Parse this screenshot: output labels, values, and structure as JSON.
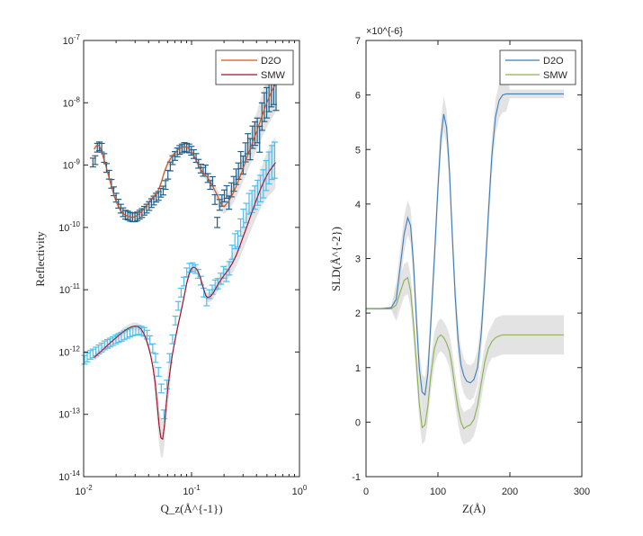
{
  "chart_data": [
    {
      "type": "line",
      "panel": "left",
      "xlabel": "Q_z(Å^{-1})",
      "ylabel": "Reflectivity",
      "xscale": "log",
      "yscale": "log",
      "xlim": [
        0.01,
        1
      ],
      "ylim": [
        1e-14,
        1e-07
      ],
      "xticks": [
        0.01,
        0.1,
        1
      ],
      "xtick_labels": [
        "10^-2",
        "10^-1",
        "10^0"
      ],
      "yticks": [
        1e-14,
        1e-13,
        1e-12,
        1e-11,
        1e-10,
        1e-09,
        1e-08,
        1e-07
      ],
      "ytick_labels": [
        "10^-14",
        "10^-13",
        "10^-12",
        "10^-11",
        "10^-10",
        "10^-9",
        "10^-8",
        "10^-7"
      ],
      "legend_position": "top-right",
      "legend": [
        {
          "label": "D2O",
          "color": "#D95319"
        },
        {
          "label": "SMW",
          "color": "#A2142F"
        }
      ],
      "series": [
        {
          "name": "D2O",
          "kind": "fit",
          "color": "#D95319",
          "x": [
            0.0125,
            0.013,
            0.0135,
            0.014,
            0.0145,
            0.015,
            0.016,
            0.017,
            0.018,
            0.019,
            0.02,
            0.022,
            0.024,
            0.026,
            0.028,
            0.03,
            0.032,
            0.034,
            0.036,
            0.038,
            0.04,
            0.042,
            0.045,
            0.048,
            0.05,
            0.053,
            0.056,
            0.06,
            0.064,
            0.068,
            0.072,
            0.076,
            0.08,
            0.085,
            0.09,
            0.095,
            0.1,
            0.105,
            0.11,
            0.115,
            0.12,
            0.13,
            0.14,
            0.15,
            0.16,
            0.17,
            0.18,
            0.19,
            0.2,
            0.22,
            0.24,
            0.26,
            0.28,
            0.3,
            0.33,
            0.36,
            0.4,
            0.44,
            0.48,
            0.52,
            0.56,
            0.6
          ],
          "y": [
            1.8e-09,
            2e-09,
            2.1e-09,
            2e-09,
            1.75e-09,
            1.45e-09,
            1e-09,
            6.8e-10,
            4.7e-10,
            3.4e-10,
            2.6e-10,
            1.85e-10,
            1.6e-10,
            1.5e-10,
            1.45e-10,
            1.48e-10,
            1.6e-10,
            1.75e-10,
            1.95e-10,
            2.2e-10,
            2.5e-10,
            2.8e-10,
            3.2e-10,
            3.6e-10,
            4.2e-10,
            5.6e-10,
            7.8e-10,
            1.05e-09,
            1.28e-09,
            1.48e-09,
            1.65e-09,
            1.8e-09,
            1.9e-09,
            1.97e-09,
            1.95e-09,
            1.85e-09,
            1.65e-09,
            1.42e-09,
            1.2e-09,
            1.02e-09,
            8.8e-10,
            7.3e-10,
            6.4e-10,
            5.3e-10,
            4.3e-10,
            3.5e-10,
            2.8e-10,
            2.3e-10,
            2.15e-10,
            2.6e-10,
            3.4e-10,
            4.6e-10,
            6.4e-10,
            8.8e-10,
            1.4e-09,
            2.1e-09,
            3.4e-09,
            5.5e-09,
            8.5e-09,
            1.2e-08,
            1.6e-08,
            2e-08
          ]
        },
        {
          "name": "SMW",
          "kind": "fit",
          "color": "#A2142F",
          "x": [
            0.0125,
            0.014,
            0.016,
            0.018,
            0.02,
            0.022,
            0.024,
            0.026,
            0.028,
            0.03,
            0.032,
            0.034,
            0.036,
            0.038,
            0.04,
            0.042,
            0.044,
            0.046,
            0.048,
            0.05,
            0.052,
            0.054,
            0.056,
            0.058,
            0.06,
            0.063,
            0.066,
            0.07,
            0.075,
            0.08,
            0.085,
            0.09,
            0.095,
            0.1,
            0.105,
            0.11,
            0.115,
            0.12,
            0.125,
            0.13,
            0.135,
            0.14,
            0.15,
            0.16,
            0.17,
            0.18,
            0.19,
            0.2,
            0.22,
            0.24,
            0.26,
            0.28,
            0.3,
            0.33,
            0.36,
            0.4,
            0.44,
            0.48,
            0.52,
            0.56,
            0.6
          ],
          "y": [
            8.2e-13,
            9.7e-13,
            1.2e-12,
            1.45e-12,
            1.7e-12,
            1.95e-12,
            2.2e-12,
            2.4e-12,
            2.55e-12,
            2.6e-12,
            2.55e-12,
            2.35e-12,
            2e-12,
            1.6e-12,
            1.2e-12,
            8.5e-13,
            5.5e-13,
            3.2e-13,
            1.5e-13,
            6.8e-14,
            4.2e-14,
            4e-14,
            6.5e-14,
            1.3e-13,
            2.4e-13,
            4.8e-13,
            8.5e-13,
            1.5e-12,
            2.7e-12,
            4.5e-12,
            7.5e-12,
            1.25e-11,
            1.8e-11,
            2.2e-11,
            2.3e-11,
            2.2e-11,
            1.95e-11,
            1.6e-11,
            1.25e-11,
            1e-11,
            8.2e-12,
            7.5e-12,
            7.8e-12,
            9e-12,
            1.1e-11,
            1.3e-11,
            1.5e-11,
            1.7e-11,
            2.1e-11,
            2.7e-11,
            3.6e-11,
            5e-11,
            7e-11,
            1.1e-10,
            1.7e-10,
            2.8e-10,
            4.3e-10,
            6e-10,
            7.8e-10,
            9.3e-10,
            1.1e-09
          ]
        },
        {
          "name": "D2O",
          "kind": "data",
          "color": "#1F5F8B",
          "x": [
            0.0122,
            0.0128,
            0.0134,
            0.014,
            0.0147,
            0.0155,
            0.0163,
            0.0172,
            0.0181,
            0.019,
            0.02,
            0.021,
            0.0221,
            0.0232,
            0.0244,
            0.0257,
            0.027,
            0.0284,
            0.0299,
            0.0314,
            0.033,
            0.0347,
            0.0365,
            0.0384,
            0.0404,
            0.0425,
            0.0447,
            0.047,
            0.0494,
            0.0519,
            0.0546,
            0.0574,
            0.0604,
            0.0635,
            0.0668,
            0.0702,
            0.0738,
            0.0776,
            0.0816,
            0.0858,
            0.0902,
            0.0948,
            0.0997,
            0.1048,
            0.1102,
            0.1159,
            0.1219,
            0.1282,
            0.1348,
            0.1417,
            0.149,
            0.1567,
            0.1647,
            0.1732,
            0.1821,
            0.1915,
            0.2013,
            0.2117,
            0.2226,
            0.2341,
            0.2461,
            0.2588,
            0.2721,
            0.2861,
            0.3008,
            0.3163,
            0.3326,
            0.3497,
            0.3677,
            0.3866,
            0.4065,
            0.4274,
            0.4494,
            0.4725,
            0.4968,
            0.5224,
            0.5493,
            0.5775,
            0.6072
          ],
          "y": [
            1.1e-09,
            1.2e-09,
            1.9e-09,
            2e-09,
            1.9e-09,
            1.3e-09,
            9e-10,
            7e-10,
            5e-10,
            3.8e-10,
            3e-10,
            2.4e-10,
            2e-10,
            1.75e-10,
            1.6e-10,
            1.55e-10,
            1.48e-10,
            1.45e-10,
            1.45e-10,
            1.5e-10,
            1.6e-10,
            1.7e-10,
            1.85e-10,
            2e-10,
            2.2e-10,
            2.45e-10,
            2.7e-10,
            3e-10,
            3.2e-10,
            3.6e-10,
            3.9e-10,
            4.8e-10,
            7e-10,
            9.5e-10,
            1.2e-09,
            1.4e-09,
            1.6e-09,
            1.75e-09,
            1.85e-09,
            1.95e-09,
            1.9e-09,
            1.85e-09,
            1.7e-09,
            1.5e-09,
            1.3e-09,
            1.05e-09,
            8.8e-10,
            7.8e-10,
            8.5e-10,
            6.2e-10,
            4.8e-10,
            5.5e-10,
            2.8e-10,
            1.2e-10,
            2.3e-10,
            2.7e-10,
            3.2e-10,
            3.7e-10,
            2.5e-10,
            4e-10,
            5e-10,
            6.5e-10,
            8e-10,
            1.2e-09,
            1e-09,
            1.6e-09,
            2.2e-09,
            1.8e-09,
            2.8e-09,
            3.2e-09,
            3.6e-09,
            2.6e-09,
            6e-09,
            8.5e-09,
            1e-08,
            1.3e-08,
            1.6e-08,
            1.8e-08,
            1.5e-08
          ]
        },
        {
          "name": "SMW",
          "kind": "data",
          "color": "#4DBEEE",
          "x": [
            0.0102,
            0.0108,
            0.0115,
            0.0122,
            0.013,
            0.0138,
            0.0147,
            0.0156,
            0.0166,
            0.0176,
            0.0187,
            0.0199,
            0.0211,
            0.0224,
            0.0238,
            0.0253,
            0.0269,
            0.0286,
            0.0304,
            0.0323,
            0.0343,
            0.0364,
            0.0387,
            0.0411,
            0.0437,
            0.0464,
            0.0493,
            0.0524,
            0.0556,
            0.0591,
            0.0628,
            0.0667,
            0.0709,
            0.0753,
            0.08,
            0.085,
            0.0903,
            0.0959,
            0.1019,
            0.1083,
            0.115,
            0.1222,
            0.1298,
            0.1379,
            0.1465,
            0.1556,
            0.1653,
            0.1756,
            0.1866,
            0.1982,
            0.2106,
            0.2237,
            0.2376,
            0.2524,
            0.2682,
            0.2849,
            0.3027,
            0.3215,
            0.3416,
            0.3629,
            0.3855,
            0.4095,
            0.435,
            0.4622,
            0.491,
            0.5216,
            0.5541,
            0.5886
          ],
          "y": [
            7.5e-13,
            8.2e-13,
            9e-13,
            9.5e-13,
            1.02e-12,
            1.1e-12,
            1.18e-12,
            1.28e-12,
            1.35e-12,
            1.42e-12,
            1.5e-12,
            1.6e-12,
            1.68e-12,
            1.75e-12,
            1.85e-12,
            1.95e-12,
            2.05e-12,
            2.15e-12,
            2.2e-12,
            2.25e-12,
            2.2e-12,
            2.1e-12,
            1.9e-12,
            1.55e-12,
            1.15e-12,
            8e-13,
            4.8e-13,
            2.6e-13,
            1e-13,
            3e-13,
            8e-13,
            1.6e-12,
            3.2e-12,
            5.5e-12,
            9e-12,
            1.35e-11,
            1.9e-11,
            2.25e-11,
            2.3e-11,
            2.15e-11,
            1.8e-11,
            1.4e-11,
            9e-12,
            6.5e-12,
            8.5e-12,
            1e-11,
            1.2e-11,
            1.25e-11,
            1.5e-11,
            1.9e-11,
            1.7e-11,
            2.2e-11,
            4e-11,
            6e-11,
            6.5e-11,
            1e-10,
            1.4e-10,
            1.7e-10,
            2.4e-10,
            2.6e-10,
            3e-10,
            3.6e-10,
            4.2e-10,
            5e-10,
            6.8e-10,
            9e-10,
            1.1e-09,
            1.2e-09
          ]
        }
      ]
    },
    {
      "type": "line",
      "panel": "right",
      "xlabel": "Z(Å)",
      "ylabel": "SLD(Å^{-2})",
      "xlim": [
        0,
        300
      ],
      "ylim": [
        -1,
        7
      ],
      "xticks": [
        0,
        100,
        200,
        300
      ],
      "yticks": [
        -1,
        0,
        1,
        2,
        3,
        4,
        5,
        6,
        7
      ],
      "exponent_label": "×10^{-6}",
      "legend_position": "top-right",
      "legend": [
        {
          "label": "D2O",
          "color": "#3C7DB8"
        },
        {
          "label": "SMW",
          "color": "#8AB04E"
        }
      ],
      "series": [
        {
          "name": "D2O",
          "color": "#3C7DB8",
          "x": [
            0,
            20,
            35,
            42,
            48,
            53,
            58,
            62,
            66,
            70,
            74,
            78,
            82,
            86,
            90,
            95,
            100,
            104,
            108,
            112,
            116,
            120,
            124,
            128,
            132,
            136,
            140,
            145,
            150,
            155,
            160,
            165,
            170,
            175,
            180,
            185,
            190,
            195,
            200,
            220,
            250,
            275
          ],
          "y": [
            2.08,
            2.08,
            2.1,
            2.25,
            2.9,
            3.45,
            3.75,
            3.6,
            2.9,
            1.9,
            1.0,
            0.55,
            0.5,
            0.9,
            1.8,
            3.0,
            4.3,
            5.2,
            5.65,
            5.4,
            4.6,
            3.4,
            2.3,
            1.5,
            1.05,
            0.85,
            0.75,
            0.72,
            0.78,
            1.0,
            1.6,
            2.6,
            3.8,
            4.9,
            5.6,
            5.9,
            6.0,
            6.02,
            6.02,
            6.02,
            6.02,
            6.02
          ]
        },
        {
          "name": "SMW",
          "color": "#8AB04E",
          "x": [
            0,
            20,
            35,
            42,
            48,
            53,
            58,
            62,
            66,
            70,
            74,
            78,
            82,
            86,
            90,
            95,
            100,
            104,
            108,
            112,
            116,
            120,
            124,
            128,
            132,
            136,
            140,
            145,
            150,
            155,
            160,
            165,
            170,
            175,
            180,
            185,
            190,
            200,
            220,
            250,
            275
          ],
          "y": [
            2.08,
            2.08,
            2.08,
            2.15,
            2.4,
            2.6,
            2.65,
            2.4,
            1.8,
            1.1,
            0.35,
            -0.1,
            -0.05,
            0.3,
            0.85,
            1.35,
            1.55,
            1.6,
            1.55,
            1.45,
            1.3,
            1.0,
            0.6,
            0.25,
            0.0,
            -0.12,
            -0.08,
            -0.05,
            0.05,
            0.3,
            0.7,
            1.1,
            1.35,
            1.48,
            1.55,
            1.58,
            1.6,
            1.6,
            1.6,
            1.6,
            1.6
          ]
        }
      ]
    }
  ]
}
